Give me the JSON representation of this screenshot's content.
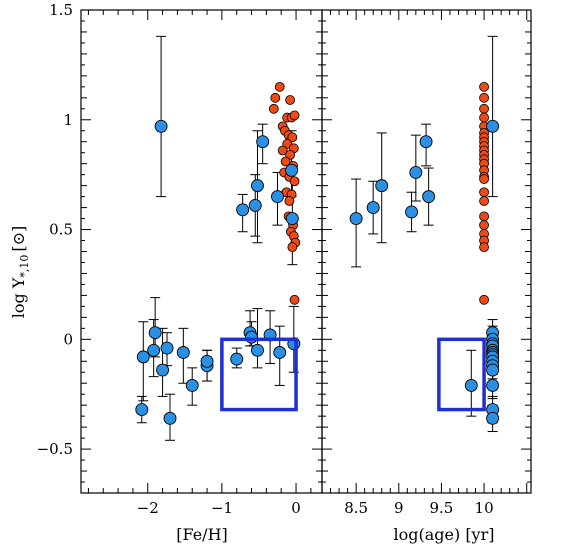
{
  "chart_data": {
    "type": "scatter",
    "ylabel": "log Υ*,10 [⊙]",
    "ylabel_main": "log Υ",
    "ylabel_sub": "*,10",
    "ylabel_unit": "[⊙]",
    "ylim": [
      -0.7,
      1.5
    ],
    "yticks": [
      -0.5,
      0,
      0.5,
      1,
      1.5
    ],
    "ytick_labels": [
      "−0.5",
      "0",
      "0.5",
      "1",
      "1.5"
    ],
    "colors": {
      "blue": "#2b8fe3",
      "orange": "#ee4a16",
      "box": "#1f2fd6"
    },
    "panels": [
      {
        "id": "feh",
        "xlabel": "[Fe/H]",
        "xlim": [
          -2.9,
          0.35
        ],
        "xticks": [
          -2,
          -1,
          0
        ],
        "xtick_labels": [
          "−2",
          "−1",
          "0"
        ],
        "box": {
          "x": [
            -1.0,
            0.0
          ],
          "y": [
            -0.32,
            0.0
          ]
        },
        "blue_points": [
          [
            -1.82,
            0.97,
            0.65,
            1.38
          ],
          [
            -2.06,
            -0.08,
            -0.28,
            0.08
          ],
          [
            -2.08,
            -0.32,
            -0.38,
            -0.26
          ],
          [
            -1.92,
            -0.05,
            -0.17,
            0.09
          ],
          [
            -1.9,
            0.03,
            -0.08,
            0.19
          ],
          [
            -1.8,
            -0.14,
            -0.26,
            0.05
          ],
          [
            -1.74,
            -0.04,
            -0.12,
            0.03
          ],
          [
            -1.7,
            -0.36,
            -0.46,
            -0.25
          ],
          [
            -1.52,
            -0.06,
            -0.2,
            0.05
          ],
          [
            -1.4,
            -0.21,
            -0.3,
            -0.13
          ],
          [
            -1.2,
            -0.12,
            -0.19,
            -0.05
          ],
          [
            -1.2,
            -0.1,
            -0.19,
            -0.05
          ],
          [
            -0.8,
            -0.09,
            -0.13,
            -0.04
          ],
          [
            -0.62,
            0.03,
            -0.03,
            0.13
          ],
          [
            -0.6,
            0.01,
            -0.03,
            0.08
          ],
          [
            -0.52,
            -0.05,
            -0.13,
            0.14
          ],
          [
            -0.35,
            0.02,
            -0.11,
            0.13
          ],
          [
            -0.22,
            -0.06,
            -0.21,
            0.06
          ],
          [
            -0.03,
            -0.02,
            -0.15,
            0.15
          ],
          [
            -0.72,
            0.59,
            0.49,
            0.66
          ],
          [
            -0.55,
            0.61,
            0.47,
            0.75
          ],
          [
            -0.52,
            0.7,
            0.44,
            0.95
          ],
          [
            -0.45,
            0.9,
            0.8,
            0.98
          ],
          [
            -0.25,
            0.65,
            0.52,
            0.76
          ],
          [
            -0.05,
            0.55,
            0.34,
            0.78
          ],
          [
            -0.06,
            0.77,
            0.65,
            0.95
          ]
        ],
        "orange_points": [
          [
            -0.22,
            1.15
          ],
          [
            -0.28,
            1.1
          ],
          [
            -0.08,
            1.09
          ],
          [
            -0.3,
            1.05
          ],
          [
            -0.12,
            1.01
          ],
          [
            -0.06,
            1.01
          ],
          [
            -0.02,
            1.02
          ],
          [
            -0.18,
            0.97
          ],
          [
            -0.15,
            0.95
          ],
          [
            -0.1,
            0.93
          ],
          [
            -0.05,
            0.92
          ],
          [
            -0.12,
            0.89
          ],
          [
            -0.03,
            0.87
          ],
          [
            -0.18,
            0.86
          ],
          [
            -0.08,
            0.84
          ],
          [
            -0.14,
            0.81
          ],
          [
            -0.04,
            0.79
          ],
          [
            -0.16,
            0.76
          ],
          [
            -0.09,
            0.74
          ],
          [
            -0.02,
            0.72
          ],
          [
            -0.13,
            0.67
          ],
          [
            -0.06,
            0.66
          ],
          [
            -0.09,
            0.63
          ],
          [
            -0.1,
            0.56
          ],
          [
            -0.04,
            0.52
          ],
          [
            -0.07,
            0.49
          ],
          [
            -0.03,
            0.47
          ],
          [
            -0.01,
            0.44
          ],
          [
            -0.05,
            0.42
          ],
          [
            -0.02,
            0.18
          ]
        ]
      },
      {
        "id": "age",
        "xlabel": "log(age) [yr]",
        "xlim": [
          8.1,
          10.55
        ],
        "xticks": [
          8.5,
          9,
          9.5,
          10
        ],
        "xtick_labels": [
          "8.5",
          "9",
          "9.5",
          "10"
        ],
        "box": {
          "x": [
            9.47,
            10.0
          ],
          "y": [
            -0.32,
            0.0
          ]
        },
        "blue_points": [
          [
            10.1,
            0.97,
            0.65,
            1.38
          ],
          [
            8.5,
            0.55,
            0.33,
            0.73
          ],
          [
            8.7,
            0.6,
            0.48,
            0.72
          ],
          [
            8.8,
            0.7,
            0.44,
            0.94
          ],
          [
            9.15,
            0.58,
            0.49,
            0.67
          ],
          [
            9.2,
            0.76,
            0.63,
            0.93
          ],
          [
            9.32,
            0.9,
            0.79,
            0.98
          ],
          [
            9.35,
            0.65,
            0.52,
            0.78
          ],
          [
            9.85,
            -0.21,
            -0.35,
            -0.05
          ]
        ],
        "blue_stack_x": 10.1,
        "blue_stack_y": [
          0.03,
          0.0,
          -0.02,
          -0.03,
          -0.05,
          -0.06,
          -0.07,
          -0.08,
          -0.1,
          -0.12,
          -0.14,
          -0.21,
          -0.32,
          -0.36
        ],
        "orange_stack_x": 10.0,
        "orange_stack_y": [
          1.15,
          1.1,
          1.05,
          1.01,
          0.97,
          0.94,
          0.92,
          0.9,
          0.88,
          0.86,
          0.84,
          0.82,
          0.8,
          0.77,
          0.74,
          0.73,
          0.67,
          0.63,
          0.56,
          0.52,
          0.48,
          0.45,
          0.42,
          0.18
        ]
      }
    ]
  }
}
